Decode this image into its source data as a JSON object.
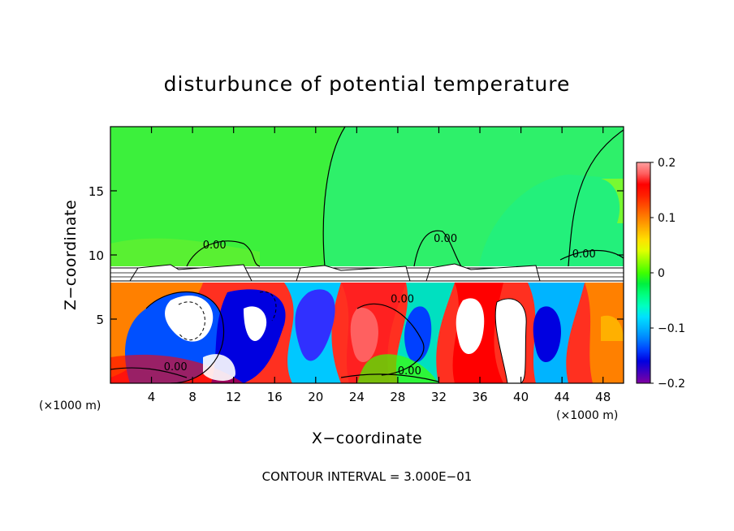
{
  "chart_data": {
    "type": "heatmap",
    "title": "disturbunce of potential temperature",
    "xlabel": "X−coordinate",
    "ylabel": "Z−coordinate",
    "x_unit_left": "(×1000 m)",
    "x_unit_right": "(×1000 m)",
    "footer": "CONTOUR INTERVAL = 3.000E−01",
    "xlim": [
      0,
      50
    ],
    "ylim": [
      0,
      20
    ],
    "x_ticks": [
      {
        "value": 4,
        "label": "4"
      },
      {
        "value": 8,
        "label": "8"
      },
      {
        "value": 12,
        "label": "12"
      },
      {
        "value": 16,
        "label": "16"
      },
      {
        "value": 20,
        "label": "20"
      },
      {
        "value": 24,
        "label": "24"
      },
      {
        "value": 28,
        "label": "28"
      },
      {
        "value": 32,
        "label": "32"
      },
      {
        "value": 36,
        "label": "36"
      },
      {
        "value": 40,
        "label": "40"
      },
      {
        "value": 44,
        "label": "44"
      },
      {
        "value": 48,
        "label": "48"
      }
    ],
    "y_ticks": [
      {
        "value": 5,
        "label": "5"
      },
      {
        "value": 10,
        "label": "10"
      },
      {
        "value": 15,
        "label": "15"
      }
    ],
    "colorbar": {
      "min": -0.2,
      "max": 0.2,
      "ticks": [
        {
          "value": 0.2,
          "label": "0.2"
        },
        {
          "value": 0.1,
          "label": "0.1"
        },
        {
          "value": 0,
          "label": "0"
        },
        {
          "value": -0.1,
          "label": "−0.1"
        },
        {
          "value": -0.2,
          "label": "−0.2"
        }
      ],
      "colors": [
        "#8000a0",
        "#4000c0",
        "#0000e0",
        "#0040ff",
        "#0080ff",
        "#00b4ff",
        "#00e0ff",
        "#00ffc0",
        "#00ff80",
        "#00f040",
        "#40ff00",
        "#90ff00",
        "#e0ff00",
        "#ffe000",
        "#ffb000",
        "#ff8000",
        "#ff5000",
        "#ff2000",
        "#ff0000",
        "#ff6060",
        "#ffa0a0"
      ]
    },
    "contour_labels": [
      {
        "x": 9,
        "y": 10.5,
        "label": "0.00"
      },
      {
        "x": 31.5,
        "y": 11,
        "label": "0.00"
      },
      {
        "x": 45,
        "y": 9.8,
        "label": "0.00"
      },
      {
        "x": 27.3,
        "y": 6.3,
        "label": "0.00"
      },
      {
        "x": 5.2,
        "y": 1.0,
        "label": "0.00"
      },
      {
        "x": 28,
        "y": 0.7,
        "label": "0.00"
      }
    ]
  }
}
